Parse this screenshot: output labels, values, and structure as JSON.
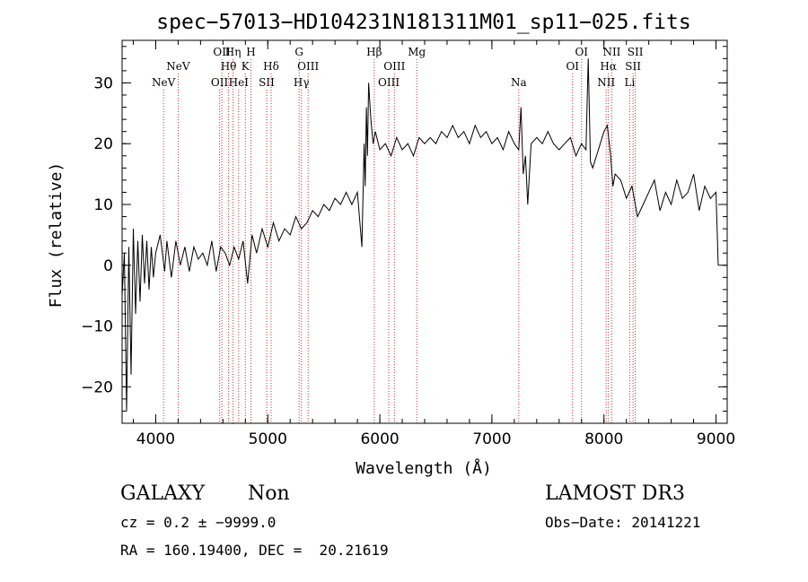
{
  "chart_data": {
    "type": "line",
    "title": "spec−57013−HD104231N181311M01_sp11−025.fits",
    "xlabel": "Wavelength (Å)",
    "ylabel": "Flux (relative)",
    "xlim": [
      3700,
      9100
    ],
    "ylim": [
      -26,
      37
    ],
    "xticks": [
      4000,
      5000,
      6000,
      7000,
      8000,
      9000
    ],
    "yticks": [
      -20,
      -10,
      0,
      10,
      20,
      30
    ],
    "tick_labels": {
      "x": [
        "4000",
        "5000",
        "6000",
        "7000",
        "8000",
        "9000"
      ],
      "y": [
        "−20",
        "−10",
        "0",
        "10",
        "20",
        "30"
      ]
    },
    "series": [
      {
        "name": "spectrum",
        "color": "#000000",
        "x": [
          3700,
          3720,
          3740,
          3760,
          3780,
          3800,
          3820,
          3840,
          3860,
          3880,
          3900,
          3920,
          3940,
          3960,
          3980,
          4000,
          4040,
          4080,
          4100,
          4140,
          4180,
          4220,
          4260,
          4300,
          4340,
          4380,
          4420,
          4460,
          4500,
          4540,
          4580,
          4620,
          4660,
          4700,
          4740,
          4780,
          4820,
          4860,
          4900,
          4950,
          5000,
          5050,
          5100,
          5150,
          5200,
          5250,
          5300,
          5350,
          5400,
          5450,
          5500,
          5550,
          5600,
          5650,
          5700,
          5750,
          5800,
          5840,
          5860,
          5870,
          5880,
          5890,
          5900,
          5920,
          5940,
          5960,
          6000,
          6050,
          6100,
          6150,
          6200,
          6250,
          6300,
          6350,
          6400,
          6450,
          6500,
          6550,
          6600,
          6650,
          6700,
          6750,
          6800,
          6850,
          6900,
          6950,
          7000,
          7050,
          7100,
          7150,
          7200,
          7240,
          7260,
          7280,
          7300,
          7320,
          7350,
          7400,
          7450,
          7500,
          7550,
          7600,
          7650,
          7700,
          7750,
          7800,
          7840,
          7860,
          7880,
          7900,
          7950,
          8000,
          8030,
          8060,
          8080,
          8100,
          8150,
          8200,
          8250,
          8300,
          8350,
          8400,
          8450,
          8500,
          8550,
          8600,
          8650,
          8700,
          8750,
          8800,
          8850,
          8900,
          8950,
          9000,
          9020
        ],
        "y": [
          -5,
          2,
          -24,
          3,
          -18,
          6,
          -8,
          4,
          -6,
          5,
          -3,
          4,
          -4,
          3,
          -2,
          2,
          5,
          -1,
          4,
          -2,
          4,
          0,
          3,
          -1,
          3,
          1,
          2,
          0,
          4,
          -1,
          3,
          2,
          0,
          3,
          1,
          4,
          -3,
          5,
          2,
          6,
          3,
          7,
          4,
          6,
          5,
          8,
          6,
          7,
          9,
          8,
          10,
          9,
          11,
          10,
          12,
          10,
          12,
          3,
          20,
          13,
          26,
          18,
          30,
          24,
          20,
          22,
          19,
          20,
          18,
          21,
          19,
          20,
          18,
          21,
          20,
          21,
          20,
          22,
          21,
          23,
          21,
          22,
          20,
          23,
          21,
          22,
          20,
          21,
          19,
          22,
          20,
          19,
          26,
          15,
          18,
          10,
          20,
          21,
          20,
          22,
          20,
          19,
          20,
          21,
          18,
          20,
          19,
          34,
          17,
          16,
          19,
          22,
          23,
          18,
          13,
          15,
          14,
          11,
          13,
          8,
          10,
          12,
          14,
          9,
          12,
          10,
          14,
          11,
          12,
          15,
          9,
          13,
          11,
          12,
          0
        ]
      }
    ],
    "lines": [
      {
        "label": "NeV",
        "x": 4070,
        "row": 1
      },
      {
        "label": "NeV",
        "x": 4200,
        "row": 0
      },
      {
        "label": "OII",
        "x": 4570,
        "row": 1
      },
      {
        "label": "OII",
        "x": 4590,
        "row": -1
      },
      {
        "label": "Hθ",
        "x": 4650,
        "row": 0
      },
      {
        "label": "Hη",
        "x": 4690,
        "row": -1
      },
      {
        "label": "HeI",
        "x": 4740,
        "row": 1
      },
      {
        "label": "K",
        "x": 4800,
        "row": 0
      },
      {
        "label": "H",
        "x": 4850,
        "row": -1
      },
      {
        "label": "SII",
        "x": 4990,
        "row": 1
      },
      {
        "label": "Hδ",
        "x": 5030,
        "row": 0
      },
      {
        "label": "G",
        "x": 5280,
        "row": -1
      },
      {
        "label": "Hγ",
        "x": 5300,
        "row": 1
      },
      {
        "label": "OIII",
        "x": 5360,
        "row": 0
      },
      {
        "label": "Hβ",
        "x": 5950,
        "row": -1
      },
      {
        "label": "OIII",
        "x": 6080,
        "row": 1
      },
      {
        "label": "OIII",
        "x": 6130,
        "row": 0
      },
      {
        "label": "Mg",
        "x": 6330,
        "row": -1
      },
      {
        "label": "Na",
        "x": 7240,
        "row": 1
      },
      {
        "label": "OI",
        "x": 7720,
        "row": 0
      },
      {
        "label": "OI",
        "x": 7800,
        "row": -1
      },
      {
        "label": "NII",
        "x": 8020,
        "row": 1
      },
      {
        "label": "Hα",
        "x": 8040,
        "row": 0
      },
      {
        "label": "NII",
        "x": 8070,
        "row": -1
      },
      {
        "label": "Li",
        "x": 8230,
        "row": 1
      },
      {
        "label": "SII",
        "x": 8260,
        "row": 0
      },
      {
        "label": "SII",
        "x": 8280,
        "row": -1
      }
    ]
  },
  "info": {
    "class": "GALAXY",
    "subclass": "Non",
    "survey": "LAMOST DR3",
    "cz": "cz = 0.2 ± −9999.0",
    "obs_date": "Obs−Date: 20141221",
    "radec": "RA = 160.19400, DEC =  20.21619"
  },
  "colors": {
    "axis": "#000000",
    "spectrum": "#000000",
    "line_markers": "#cc3333"
  }
}
